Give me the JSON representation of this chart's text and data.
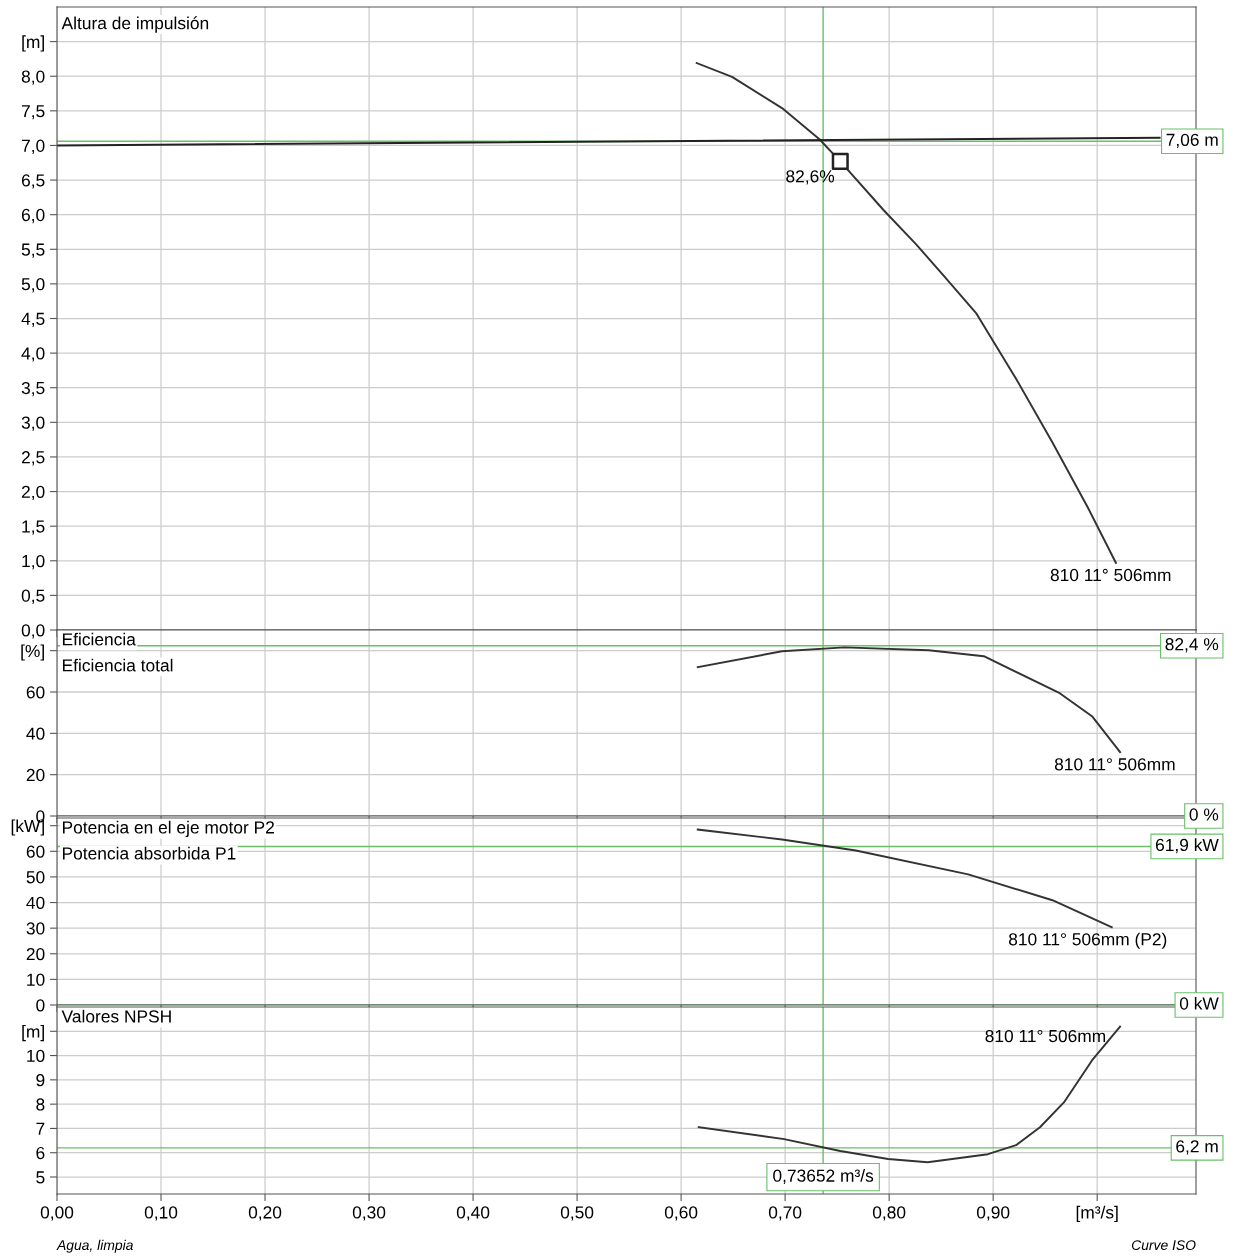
{
  "chart_data": [
    {
      "type": "line",
      "title": "Altura de impulsión",
      "xlim": [
        0,
        1.095
      ],
      "ylim": [
        0,
        9.0
      ],
      "xticks": [
        0,
        0.1,
        0.2,
        0.3,
        0.4,
        0.5,
        0.6,
        0.7,
        0.8,
        0.9,
        1.0
      ],
      "yticks": [
        {
          "value": 0,
          "label": "0,0"
        },
        {
          "value": 0.5,
          "label": "0,5"
        },
        {
          "value": 1,
          "label": "1,0"
        },
        {
          "value": 1.5,
          "label": "1,5"
        },
        {
          "value": 2,
          "label": "2,0"
        },
        {
          "value": 2.5,
          "label": "2,5"
        },
        {
          "value": 3,
          "label": "3,0"
        },
        {
          "value": 3.5,
          "label": "3,5"
        },
        {
          "value": 4,
          "label": "4,0"
        },
        {
          "value": 4.5,
          "label": "4,5"
        },
        {
          "value": 5,
          "label": "5,0"
        },
        {
          "value": 5.5,
          "label": "5,5"
        },
        {
          "value": 6,
          "label": "6,0"
        },
        {
          "value": 6.5,
          "label": "6,5"
        },
        {
          "value": 7,
          "label": "7,0"
        },
        {
          "value": 7.5,
          "label": "7,5"
        },
        {
          "value": 8,
          "label": "8,0"
        },
        {
          "value": 8.5,
          "label": "[m]"
        }
      ],
      "grid": true,
      "tick_labels": "y",
      "series": [
        {
          "name": "810 11° 506mm",
          "color": "#333333",
          "x": [
            0.615,
            0.649,
            0.697,
            0.733,
            0.753,
            0.795,
            0.826,
            0.853,
            0.884,
            0.922,
            0.957,
            0.991,
            1.018
          ],
          "values": [
            8.19,
            7.99,
            7.54,
            7.09,
            6.77,
            6.06,
            5.57,
            5.11,
            4.57,
            3.63,
            2.71,
            1.77,
            0.97
          ]
        },
        {
          "color": "#222222",
          "x": [
            0,
            1.06
          ],
          "values": [
            7.0,
            7.11
          ]
        },
        {
          "type": "scatter",
          "marker": "square",
          "color": "#222222",
          "x": [
            0.753
          ],
          "values": [
            6.77
          ]
        }
      ],
      "ref_lines": [
        {
          "axis": "x",
          "value": 0.73652,
          "color": "#6abf69"
        },
        {
          "axis": "y",
          "value": 7.06,
          "label": "7,06 m",
          "color": "#6abf69"
        }
      ],
      "annotations": [
        {
          "text": "82,6%",
          "x": 0.753,
          "y": 6.77
        }
      ]
    },
    {
      "type": "line",
      "title": "Eficiencia",
      "subtitle": "Eficiencia total",
      "xlim": [
        0,
        1.095
      ],
      "ylim": [
        0,
        90
      ],
      "xticks": [
        0,
        0.1,
        0.2,
        0.3,
        0.4,
        0.5,
        0.6,
        0.7,
        0.8,
        0.9,
        1.0
      ],
      "yticks": [
        0,
        20,
        40,
        60,
        {
          "value": 80,
          "label": "[%]"
        }
      ],
      "grid": true,
      "tick_labels": "y",
      "series": [
        {
          "name": "810 11° 506mm",
          "color": "#333333",
          "x": [
            0.616,
            0.697,
            0.757,
            0.838,
            0.891,
            0.964,
            0.995,
            1.022
          ],
          "values": [
            72.0,
            79.7,
            81.6,
            80.2,
            77.3,
            59.4,
            48.3,
            30.9
          ]
        }
      ],
      "ref_lines": [
        {
          "axis": "x",
          "value": 0.73652,
          "color": "#6abf69"
        },
        {
          "axis": "y",
          "value": 82.4,
          "label": "82,4 %",
          "color": "#6abf69"
        },
        {
          "axis": "y",
          "value": 0,
          "label": "0 %",
          "color": "#6abf69"
        }
      ]
    },
    {
      "type": "line",
      "title": "Potencia en el eje motor P2",
      "subtitle": "Potencia absorbida P1",
      "xlim": [
        0,
        1.095
      ],
      "ylim": [
        0,
        73
      ],
      "xticks": [
        0,
        0.1,
        0.2,
        0.3,
        0.4,
        0.5,
        0.6,
        0.7,
        0.8,
        0.9,
        1.0
      ],
      "yticks": [
        0,
        10,
        20,
        30,
        40,
        50,
        60,
        {
          "value": 70,
          "label": "[kW]"
        }
      ],
      "grid": true,
      "tick_labels": "y",
      "series": [
        {
          "name": "810 11° 506mm (P2)",
          "color": "#333333",
          "x": [
            0.616,
            0.697,
            0.768,
            0.876,
            0.957,
            1.014
          ],
          "values": [
            68.5,
            64.6,
            60.3,
            51.0,
            40.9,
            30.4
          ]
        }
      ],
      "ref_lines": [
        {
          "axis": "x",
          "value": 0.73652,
          "color": "#6abf69"
        },
        {
          "axis": "y",
          "value": 61.9,
          "label": "61,9 kW",
          "color": "#6abf69"
        },
        {
          "axis": "y",
          "value": 0,
          "label": "0 kW",
          "color": "#6abf69"
        }
      ]
    },
    {
      "type": "line",
      "title": "Valores NPSH",
      "xlim": [
        0,
        1.095
      ],
      "ylim": [
        4.3,
        12
      ],
      "xticks": [
        {
          "value": 0,
          "label": "0,00"
        },
        {
          "value": 0.1,
          "label": "0,10"
        },
        {
          "value": 0.2,
          "label": "0,20"
        },
        {
          "value": 0.3,
          "label": "0,30"
        },
        {
          "value": 0.4,
          "label": "0,40"
        },
        {
          "value": 0.5,
          "label": "0,50"
        },
        {
          "value": 0.6,
          "label": "0,60"
        },
        {
          "value": 0.7,
          "label": "0,70"
        },
        {
          "value": 0.8,
          "label": "0,80"
        },
        {
          "value": 0.9,
          "label": "0,90"
        },
        {
          "value": 1.0,
          "label": "[m³/s]"
        }
      ],
      "yticks": [
        5,
        6,
        7,
        8,
        9,
        10,
        {
          "value": 11,
          "label": "[m]"
        }
      ],
      "grid": true,
      "series": [
        {
          "name": "810 11° 506mm",
          "color": "#333333",
          "x": [
            0.617,
            0.699,
            0.753,
            0.799,
            0.837,
            0.895,
            0.922,
            0.945,
            0.968,
            0.995,
            1.022
          ],
          "values": [
            7.05,
            6.56,
            6.07,
            5.74,
            5.61,
            5.94,
            6.31,
            7.05,
            8.07,
            9.8,
            11.19
          ]
        }
      ],
      "ref_lines": [
        {
          "axis": "x",
          "value": 0.73652,
          "label": "0,73652 m³/s",
          "color": "#6abf69"
        },
        {
          "axis": "y",
          "value": 6.2,
          "label": "6,2 m",
          "color": "#6abf69"
        }
      ],
      "annotations": [
        "Agua, limpia",
        "Curve ISO"
      ]
    }
  ]
}
